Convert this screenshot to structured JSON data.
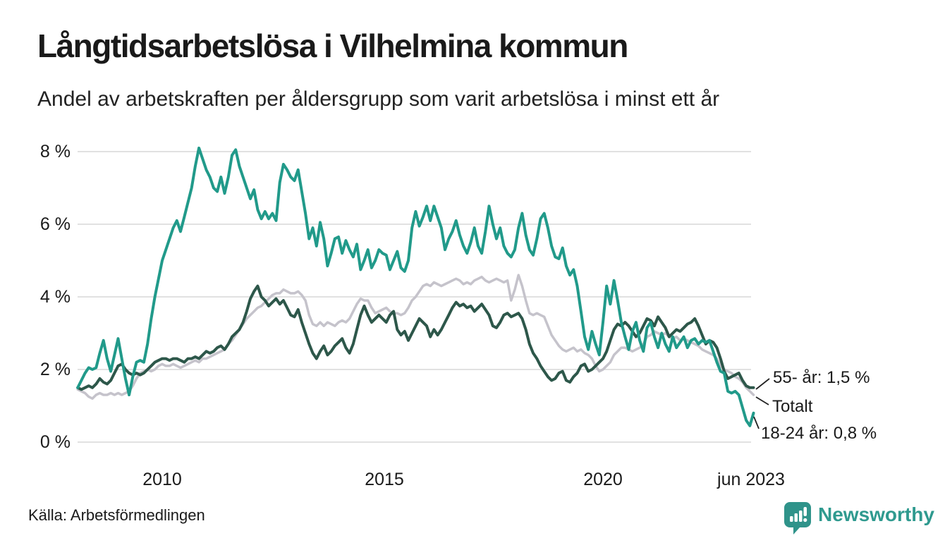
{
  "title": "Långtidsarbetslösa i Vilhelmina kommun",
  "subtitle": "Andel av arbetskraften per åldersgrupp som varit arbetslösa i minst ett år",
  "source": "Källa: Arbetsförmedlingen",
  "brand": {
    "name": "Newsworthy",
    "color": "#2f9a8f"
  },
  "colors": {
    "teal_line": "#219a8a",
    "dark_green_line": "#2d574a",
    "gray_line": "#c5c3cb",
    "gridline": "#e1e1e1",
    "text": "#1a1a1a",
    "leader_line": "#222222"
  },
  "chart_data": {
    "type": "line",
    "title": "Långtidsarbetslösa i Vilhelmina kommun",
    "subtitle": "Andel av arbetskraften per åldersgrupp som varit arbetslösa i minst ett år",
    "unit": "% av arbetskraften",
    "frequency": "monthly",
    "x_start": {
      "year": 2008,
      "month": 2
    },
    "x_end": {
      "year": 2023,
      "month": 6
    },
    "ylim": [
      0,
      8.5
    ],
    "grid": "horizontal",
    "y_ticks": [
      "0 %",
      "2 %",
      "4 %",
      "6 %",
      "8 %"
    ],
    "y_tick_values": [
      0,
      2,
      4,
      6,
      8
    ],
    "x_tick_labels": [
      "2010",
      "2015",
      "2020",
      "jun 2023"
    ],
    "x_tick_years": [
      2010,
      2015,
      2020,
      2023.44
    ],
    "series": [
      {
        "name": "Totalt",
        "end_label": "Totalt",
        "end_value": 1.3,
        "color": "#c5c3cb",
        "width": 3.5,
        "values": [
          1.45,
          1.4,
          1.35,
          1.25,
          1.2,
          1.3,
          1.35,
          1.3,
          1.3,
          1.35,
          1.3,
          1.35,
          1.3,
          1.35,
          1.4,
          1.55,
          1.75,
          1.9,
          1.95,
          2.0,
          1.95,
          2.0,
          2.1,
          2.15,
          2.1,
          2.1,
          2.15,
          2.1,
          2.05,
          2.1,
          2.15,
          2.2,
          2.25,
          2.2,
          2.3,
          2.3,
          2.35,
          2.4,
          2.45,
          2.5,
          2.55,
          2.7,
          2.8,
          2.95,
          3.1,
          3.25,
          3.4,
          3.5,
          3.6,
          3.7,
          3.75,
          3.85,
          3.95,
          4.05,
          4.1,
          4.1,
          4.2,
          4.15,
          4.1,
          4.1,
          4.15,
          4.05,
          3.9,
          3.5,
          3.25,
          3.2,
          3.3,
          3.2,
          3.3,
          3.25,
          3.2,
          3.3,
          3.35,
          3.3,
          3.4,
          3.6,
          3.8,
          3.95,
          3.9,
          3.9,
          3.7,
          3.55,
          3.6,
          3.65,
          3.7,
          3.6,
          3.55,
          3.55,
          3.5,
          3.55,
          3.7,
          3.9,
          4.0,
          4.15,
          4.3,
          4.35,
          4.3,
          4.4,
          4.35,
          4.3,
          4.35,
          4.4,
          4.45,
          4.5,
          4.45,
          4.35,
          4.4,
          4.35,
          4.45,
          4.5,
          4.55,
          4.45,
          4.4,
          4.45,
          4.5,
          4.45,
          4.4,
          4.45,
          3.9,
          4.2,
          4.6,
          4.3,
          3.9,
          3.55,
          3.5,
          3.55,
          3.5,
          3.45,
          3.2,
          2.95,
          2.8,
          2.65,
          2.55,
          2.5,
          2.55,
          2.6,
          2.5,
          2.55,
          2.45,
          2.4,
          2.3,
          2.1,
          1.95,
          2.0,
          2.1,
          2.2,
          2.4,
          2.5,
          2.6,
          2.6,
          2.55,
          2.5,
          2.55,
          2.6,
          2.7,
          2.9,
          2.95,
          3.05,
          3.0,
          2.95,
          3.0,
          2.9,
          2.85,
          2.9,
          2.8,
          2.85,
          2.8,
          2.75,
          2.7,
          2.65,
          2.55,
          2.5,
          2.45,
          2.4,
          2.3,
          2.1,
          2.0,
          1.95,
          1.9,
          1.8,
          1.75,
          1.65,
          1.5,
          1.4,
          1.3
        ]
      },
      {
        "name": "55- år",
        "end_label": "55- år: 1,5 %",
        "end_value": 1.5,
        "color": "#2d574a",
        "width": 4,
        "values": [
          1.5,
          1.45,
          1.5,
          1.55,
          1.5,
          1.6,
          1.75,
          1.65,
          1.6,
          1.7,
          1.9,
          2.1,
          2.15,
          2.0,
          1.9,
          1.85,
          1.9,
          1.85,
          1.9,
          2.0,
          2.1,
          2.2,
          2.25,
          2.3,
          2.3,
          2.25,
          2.3,
          2.3,
          2.25,
          2.2,
          2.3,
          2.3,
          2.35,
          2.3,
          2.4,
          2.5,
          2.45,
          2.5,
          2.6,
          2.65,
          2.55,
          2.7,
          2.9,
          3.0,
          3.1,
          3.3,
          3.6,
          3.95,
          4.15,
          4.3,
          4.0,
          3.9,
          3.75,
          3.85,
          3.95,
          3.8,
          3.9,
          3.7,
          3.5,
          3.45,
          3.65,
          3.3,
          3.0,
          2.7,
          2.45,
          2.3,
          2.5,
          2.65,
          2.4,
          2.5,
          2.65,
          2.75,
          2.85,
          2.6,
          2.45,
          2.7,
          3.1,
          3.5,
          3.75,
          3.5,
          3.3,
          3.4,
          3.5,
          3.4,
          3.3,
          3.5,
          3.6,
          3.1,
          2.95,
          3.05,
          2.8,
          3.0,
          3.2,
          3.4,
          3.3,
          3.2,
          2.9,
          3.1,
          2.95,
          3.1,
          3.3,
          3.5,
          3.7,
          3.85,
          3.75,
          3.8,
          3.7,
          3.75,
          3.6,
          3.7,
          3.8,
          3.65,
          3.5,
          3.2,
          3.15,
          3.3,
          3.5,
          3.55,
          3.45,
          3.5,
          3.55,
          3.4,
          3.1,
          2.7,
          2.45,
          2.3,
          2.1,
          1.95,
          1.8,
          1.7,
          1.75,
          1.9,
          1.95,
          1.7,
          1.65,
          1.8,
          1.9,
          2.1,
          2.15,
          1.95,
          2.0,
          2.1,
          2.2,
          2.3,
          2.5,
          2.8,
          3.1,
          3.25,
          3.2,
          3.3,
          3.2,
          3.05,
          2.9,
          3.0,
          3.2,
          3.4,
          3.35,
          3.2,
          3.45,
          3.3,
          3.15,
          2.9,
          3.0,
          3.1,
          3.05,
          3.15,
          3.25,
          3.3,
          3.4,
          3.2,
          2.95,
          2.7,
          2.8,
          2.75,
          2.6,
          2.3,
          1.95,
          1.75,
          1.8,
          1.85,
          1.9,
          1.7,
          1.55,
          1.5,
          1.5
        ]
      },
      {
        "name": "18-24 år",
        "end_label": "18-24 år: 0,8 %",
        "end_value": 0.8,
        "color": "#219a8a",
        "width": 4,
        "values": [
          1.5,
          1.7,
          1.9,
          2.05,
          2.0,
          2.05,
          2.45,
          2.8,
          2.3,
          1.95,
          2.4,
          2.85,
          2.3,
          1.75,
          1.3,
          1.8,
          2.2,
          2.25,
          2.2,
          2.7,
          3.4,
          4.0,
          4.5,
          5.0,
          5.3,
          5.6,
          5.9,
          6.1,
          5.8,
          6.2,
          6.6,
          7.0,
          7.6,
          8.1,
          7.8,
          7.5,
          7.3,
          7.0,
          6.9,
          7.3,
          6.85,
          7.3,
          7.9,
          8.05,
          7.6,
          7.3,
          7.0,
          6.7,
          6.95,
          6.4,
          6.15,
          6.35,
          6.15,
          6.3,
          6.1,
          7.15,
          7.65,
          7.5,
          7.3,
          7.2,
          7.5,
          6.9,
          6.3,
          5.6,
          5.9,
          5.4,
          6.05,
          5.6,
          4.85,
          5.2,
          5.6,
          5.65,
          5.2,
          5.55,
          5.3,
          5.1,
          5.45,
          4.75,
          5.0,
          5.3,
          4.8,
          5.0,
          5.3,
          5.2,
          5.15,
          4.75,
          5.0,
          5.25,
          4.8,
          4.7,
          5.0,
          5.9,
          6.35,
          5.95,
          6.2,
          6.5,
          6.1,
          6.5,
          6.2,
          5.9,
          5.3,
          5.6,
          5.8,
          6.1,
          5.7,
          5.4,
          5.2,
          5.5,
          5.9,
          5.4,
          5.2,
          5.8,
          6.5,
          6.0,
          5.6,
          5.9,
          5.4,
          5.2,
          5.1,
          5.3,
          5.9,
          6.3,
          5.7,
          5.3,
          5.15,
          5.6,
          6.15,
          6.3,
          5.9,
          5.4,
          5.1,
          5.05,
          5.35,
          4.85,
          4.6,
          4.75,
          4.3,
          3.6,
          2.9,
          2.55,
          3.05,
          2.7,
          2.4,
          3.3,
          4.3,
          3.8,
          4.45,
          3.9,
          3.3,
          2.9,
          2.55,
          3.05,
          3.3,
          2.8,
          2.5,
          3.15,
          3.3,
          2.9,
          2.6,
          3.0,
          2.7,
          2.5,
          2.9,
          2.6,
          2.75,
          2.9,
          2.6,
          2.8,
          2.85,
          2.7,
          2.8,
          2.75,
          2.8,
          2.5,
          2.2,
          1.95,
          1.9,
          1.4,
          1.35,
          1.4,
          1.3,
          0.95,
          0.6,
          0.45,
          0.8
        ]
      }
    ]
  }
}
